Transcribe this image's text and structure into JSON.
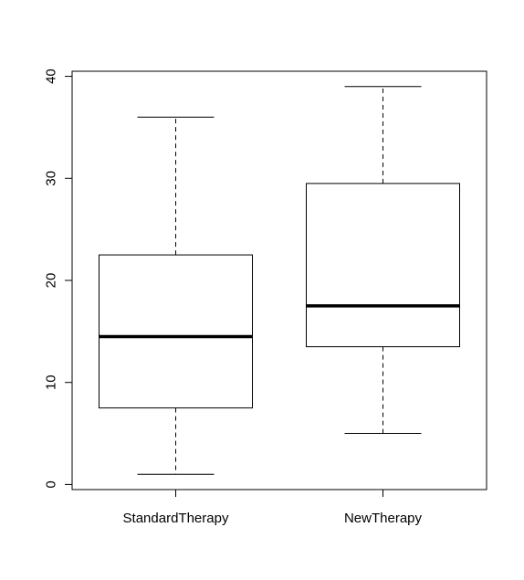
{
  "chart_data": {
    "type": "boxplot",
    "categories": [
      "StandardTherapy",
      "NewTherapy"
    ],
    "boxes": [
      {
        "name": "StandardTherapy",
        "min": 1,
        "q1": 7.5,
        "median": 14.5,
        "q3": 22.5,
        "max": 36
      },
      {
        "name": "NewTherapy",
        "min": 5,
        "q1": 13.5,
        "median": 17.5,
        "q3": 29.5,
        "max": 39
      }
    ],
    "yticks": [
      0,
      10,
      20,
      30,
      40
    ],
    "ylim": [
      -0.5,
      40.5
    ],
    "title": "",
    "xlabel": "",
    "ylabel": "",
    "grid": false
  }
}
